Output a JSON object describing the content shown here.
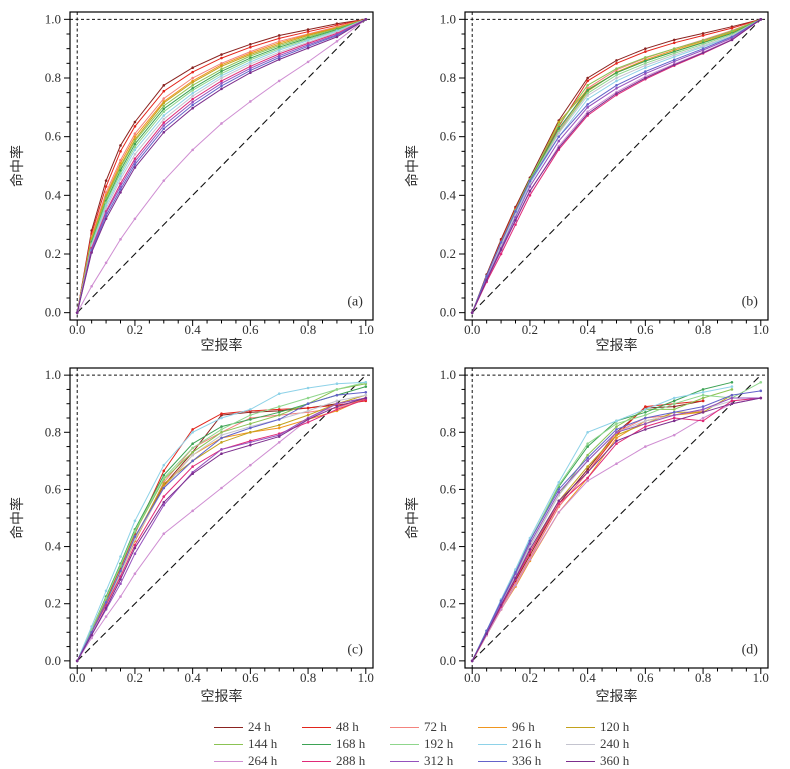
{
  "figure": {
    "panel_tags": [
      "(a)",
      "(b)",
      "(c)",
      "(d)"
    ],
    "axis_color": "#000000",
    "text_color": "#303030"
  },
  "legend": {
    "items": [
      {
        "label": "24 h",
        "color": "#8b2320"
      },
      {
        "label": "48 h",
        "color": "#e2251c"
      },
      {
        "label": "72 h",
        "color": "#f4837d"
      },
      {
        "label": "96 h",
        "color": "#f0961f"
      },
      {
        "label": "120 h",
        "color": "#c3a21c"
      },
      {
        "label": "144 h",
        "color": "#8bc353"
      },
      {
        "label": "168 h",
        "color": "#3da355"
      },
      {
        "label": "192 h",
        "color": "#8fd68c"
      },
      {
        "label": "216 h",
        "color": "#8ed2e8"
      },
      {
        "label": "240 h",
        "color": "#c4c4cf"
      },
      {
        "label": "264 h",
        "color": "#cf8ed2"
      },
      {
        "label": "288 h",
        "color": "#e02a78"
      },
      {
        "label": "312 h",
        "color": "#9551bd"
      },
      {
        "label": "336 h",
        "color": "#6463ca"
      },
      {
        "label": "360 h",
        "color": "#7c2e8d"
      }
    ]
  },
  "chart_data": {
    "type": "line",
    "xlabel": "空报率",
    "ylabel": "命中率",
    "xlim": [
      0,
      1
    ],
    "ylim": [
      0,
      1
    ],
    "ticks": [
      "0.0",
      "0.2",
      "0.4",
      "0.6",
      "0.8",
      "1.0"
    ],
    "tick_values": [
      0,
      0.2,
      0.4,
      0.6,
      0.8,
      1.0
    ],
    "minor_tick_step": 0.05,
    "grid": false,
    "diagonal_reference": {
      "from": [
        0,
        0
      ],
      "to": [
        1,
        1
      ],
      "style": "dashed",
      "color": "#111111"
    },
    "reference_lines": [
      {
        "axis": "x",
        "value": 0,
        "style": "dashed"
      },
      {
        "axis": "y",
        "value": 1,
        "style": "dashed"
      }
    ],
    "legend_position": "bottom",
    "x": [
      0,
      0.05,
      0.1,
      0.15,
      0.2,
      0.3,
      0.4,
      0.5,
      0.6,
      0.7,
      0.8,
      0.9,
      1.0
    ],
    "panels": [
      {
        "tag": "(a)",
        "y_series": [
          [
            0,
            0.28,
            0.45,
            0.57,
            0.65,
            0.775,
            0.835,
            0.88,
            0.915,
            0.945,
            0.965,
            0.985,
            1
          ],
          [
            0,
            0.27,
            0.43,
            0.55,
            0.635,
            0.755,
            0.82,
            0.868,
            0.905,
            0.935,
            0.958,
            0.98,
            1
          ],
          [
            0,
            0.26,
            0.41,
            0.52,
            0.61,
            0.73,
            0.8,
            0.85,
            0.89,
            0.925,
            0.95,
            0.975,
            1
          ],
          [
            0,
            0.255,
            0.4,
            0.51,
            0.6,
            0.72,
            0.79,
            0.845,
            0.885,
            0.92,
            0.948,
            0.972,
            1
          ],
          [
            0,
            0.25,
            0.395,
            0.5,
            0.59,
            0.715,
            0.785,
            0.84,
            0.88,
            0.915,
            0.945,
            0.97,
            1
          ],
          [
            0,
            0.245,
            0.39,
            0.495,
            0.585,
            0.705,
            0.775,
            0.83,
            0.875,
            0.91,
            0.94,
            0.968,
            1
          ],
          [
            0,
            0.24,
            0.38,
            0.485,
            0.575,
            0.695,
            0.765,
            0.823,
            0.868,
            0.905,
            0.936,
            0.965,
            1
          ],
          [
            0,
            0.235,
            0.375,
            0.475,
            0.565,
            0.685,
            0.758,
            0.815,
            0.862,
            0.9,
            0.932,
            0.962,
            1
          ],
          [
            0,
            0.23,
            0.365,
            0.465,
            0.555,
            0.672,
            0.748,
            0.808,
            0.855,
            0.895,
            0.928,
            0.96,
            1
          ],
          [
            0,
            0.225,
            0.355,
            0.455,
            0.54,
            0.66,
            0.738,
            0.8,
            0.848,
            0.888,
            0.922,
            0.956,
            1
          ],
          [
            0,
            0.09,
            0.17,
            0.25,
            0.32,
            0.45,
            0.555,
            0.645,
            0.72,
            0.79,
            0.855,
            0.925,
            1
          ],
          [
            0,
            0.22,
            0.345,
            0.44,
            0.525,
            0.648,
            0.728,
            0.79,
            0.84,
            0.882,
            0.918,
            0.952,
            1
          ],
          [
            0,
            0.215,
            0.34,
            0.43,
            0.515,
            0.638,
            0.718,
            0.782,
            0.833,
            0.876,
            0.913,
            0.948,
            1
          ],
          [
            0,
            0.21,
            0.33,
            0.42,
            0.505,
            0.627,
            0.708,
            0.773,
            0.826,
            0.87,
            0.908,
            0.945,
            1
          ],
          [
            0,
            0.205,
            0.32,
            0.41,
            0.495,
            0.615,
            0.697,
            0.763,
            0.818,
            0.863,
            0.902,
            0.94,
            1
          ]
        ]
      },
      {
        "tag": "(b)",
        "y_series": [
          [
            0,
            0.13,
            0.25,
            0.36,
            0.46,
            0.655,
            0.8,
            0.86,
            0.9,
            0.93,
            0.952,
            0.975,
            1
          ],
          [
            0,
            0.125,
            0.245,
            0.355,
            0.45,
            0.635,
            0.79,
            0.85,
            0.89,
            0.92,
            0.945,
            0.97,
            1
          ],
          [
            0,
            0.12,
            0.24,
            0.35,
            0.445,
            0.62,
            0.765,
            0.828,
            0.868,
            0.9,
            0.93,
            0.962,
            1
          ],
          [
            0,
            0.12,
            0.235,
            0.345,
            0.44,
            0.615,
            0.755,
            0.82,
            0.862,
            0.895,
            0.926,
            0.958,
            1
          ],
          [
            0,
            0.12,
            0.235,
            0.345,
            0.45,
            0.65,
            0.76,
            0.818,
            0.858,
            0.89,
            0.922,
            0.955,
            1
          ],
          [
            0,
            0.125,
            0.24,
            0.35,
            0.455,
            0.64,
            0.775,
            0.832,
            0.87,
            0.9,
            0.928,
            0.96,
            1
          ],
          [
            0,
            0.12,
            0.235,
            0.345,
            0.45,
            0.628,
            0.758,
            0.818,
            0.858,
            0.89,
            0.92,
            0.952,
            1
          ],
          [
            0,
            0.12,
            0.23,
            0.34,
            0.448,
            0.618,
            0.748,
            0.81,
            0.85,
            0.884,
            0.915,
            0.948,
            1
          ],
          [
            0,
            0.115,
            0.225,
            0.33,
            0.44,
            0.6,
            0.728,
            0.79,
            0.835,
            0.872,
            0.906,
            0.942,
            1
          ],
          [
            0,
            0.12,
            0.23,
            0.338,
            0.445,
            0.612,
            0.74,
            0.8,
            0.843,
            0.878,
            0.91,
            0.944,
            1
          ],
          [
            0,
            0.11,
            0.21,
            0.312,
            0.412,
            0.568,
            0.685,
            0.752,
            0.805,
            0.848,
            0.888,
            0.932,
            1
          ],
          [
            0,
            0.105,
            0.2,
            0.3,
            0.4,
            0.556,
            0.672,
            0.742,
            0.796,
            0.842,
            0.884,
            0.93,
            1
          ],
          [
            0,
            0.115,
            0.22,
            0.325,
            0.43,
            0.585,
            0.7,
            0.765,
            0.815,
            0.856,
            0.895,
            0.936,
            1
          ],
          [
            0,
            0.125,
            0.24,
            0.345,
            0.448,
            0.6,
            0.71,
            0.775,
            0.822,
            0.862,
            0.9,
            0.94,
            1
          ],
          [
            0,
            0.11,
            0.215,
            0.315,
            0.415,
            0.562,
            0.678,
            0.747,
            0.8,
            0.845,
            0.886,
            0.93,
            1
          ]
        ]
      },
      {
        "tag": "(c)",
        "y_series": [
          [
            0,
            0.1,
            0.21,
            0.31,
            0.42,
            0.615,
            0.73,
            0.86,
            0.87,
            0.875,
            0.885,
            0.9,
            0.92
          ],
          [
            0,
            0.105,
            0.215,
            0.325,
            0.445,
            0.665,
            0.81,
            0.865,
            0.875,
            0.88,
            0.885,
            0.895,
            0.91
          ],
          [
            0,
            0.1,
            0.205,
            0.31,
            0.425,
            0.625,
            0.745,
            0.8,
            0.85,
            0.86,
            0.87,
            0.885,
            0.92
          ],
          [
            0,
            0.1,
            0.2,
            0.305,
            0.42,
            0.61,
            0.72,
            0.78,
            0.8,
            0.815,
            0.845,
            0.875,
            0.92
          ],
          [
            0,
            0.1,
            0.21,
            0.31,
            0.43,
            0.62,
            0.7,
            0.765,
            0.8,
            0.825,
            0.86,
            0.9,
            0.93
          ],
          [
            0,
            0.11,
            0.22,
            0.33,
            0.45,
            0.635,
            0.73,
            0.8,
            0.83,
            0.86,
            0.9,
            0.95,
            0.97
          ],
          [
            0,
            0.11,
            0.225,
            0.34,
            0.46,
            0.65,
            0.76,
            0.82,
            0.845,
            0.87,
            0.9,
            0.93,
            0.96
          ],
          [
            0,
            0.11,
            0.22,
            0.335,
            0.455,
            0.64,
            0.745,
            0.81,
            0.86,
            0.89,
            0.92,
            0.95,
            0.975
          ],
          [
            0,
            0.12,
            0.245,
            0.365,
            0.49,
            0.685,
            0.8,
            0.85,
            0.88,
            0.935,
            0.955,
            0.97,
            0.975
          ],
          [
            0,
            0.1,
            0.205,
            0.305,
            0.425,
            0.605,
            0.72,
            0.79,
            0.82,
            0.845,
            0.875,
            0.91,
            0.93
          ],
          [
            0,
            0.08,
            0.155,
            0.225,
            0.305,
            0.445,
            0.525,
            0.605,
            0.685,
            0.765,
            0.845,
            0.9,
            0.92
          ],
          [
            0,
            0.1,
            0.195,
            0.295,
            0.405,
            0.575,
            0.68,
            0.74,
            0.77,
            0.795,
            0.835,
            0.88,
            0.915
          ],
          [
            0,
            0.09,
            0.18,
            0.27,
            0.375,
            0.545,
            0.66,
            0.74,
            0.765,
            0.79,
            0.85,
            0.9,
            0.92
          ],
          [
            0,
            0.1,
            0.205,
            0.315,
            0.435,
            0.605,
            0.7,
            0.78,
            0.815,
            0.845,
            0.9,
            0.93,
            0.94
          ],
          [
            0,
            0.09,
            0.185,
            0.285,
            0.395,
            0.555,
            0.655,
            0.725,
            0.755,
            0.785,
            0.845,
            0.89,
            0.92
          ]
        ]
      },
      {
        "tag": "(d)",
        "y_series": [
          [
            0,
            0.09,
            0.19,
            0.28,
            0.37,
            0.55,
            0.67,
            0.8,
            0.885,
            0.89,
            0.91,
            null,
            null
          ],
          [
            0,
            0.09,
            0.18,
            0.27,
            0.36,
            0.54,
            0.66,
            0.79,
            0.89,
            0.9,
            0.91,
            null,
            null
          ],
          [
            0,
            0.09,
            0.18,
            0.27,
            0.36,
            0.54,
            0.66,
            0.8,
            0.85,
            0.86,
            0.875,
            null,
            null
          ],
          [
            0,
            0.09,
            0.18,
            0.26,
            0.35,
            0.52,
            0.64,
            0.78,
            0.84,
            0.86,
            0.87,
            null,
            null
          ],
          [
            0,
            0.095,
            0.19,
            0.285,
            0.38,
            0.56,
            0.68,
            0.79,
            0.83,
            0.87,
            0.87,
            0.93,
            null
          ],
          [
            0,
            0.1,
            0.2,
            0.3,
            0.4,
            0.58,
            0.72,
            0.82,
            0.88,
            0.88,
            0.92,
            0.95,
            null
          ],
          [
            0,
            0.105,
            0.21,
            0.315,
            0.42,
            0.61,
            0.75,
            0.84,
            0.87,
            0.91,
            0.95,
            0.975,
            null
          ],
          [
            0,
            0.105,
            0.21,
            0.315,
            0.42,
            0.615,
            0.76,
            0.83,
            0.86,
            0.9,
            0.93,
            0.92,
            0.975
          ],
          [
            0,
            0.105,
            0.215,
            0.32,
            0.43,
            0.625,
            0.8,
            0.84,
            0.88,
            0.92,
            0.94,
            0.96,
            null
          ],
          [
            0,
            0.1,
            0.2,
            0.3,
            0.4,
            0.58,
            0.7,
            0.8,
            0.84,
            0.86,
            0.88,
            0.91,
            0.92
          ],
          [
            0,
            0.09,
            0.18,
            0.265,
            0.355,
            0.52,
            0.63,
            0.69,
            0.75,
            0.79,
            0.85,
            0.9,
            0.92
          ],
          [
            0,
            0.095,
            0.19,
            0.285,
            0.38,
            0.55,
            0.64,
            0.76,
            0.82,
            0.85,
            0.84,
            0.91,
            0.92
          ],
          [
            0,
            0.1,
            0.205,
            0.305,
            0.41,
            0.59,
            0.7,
            0.8,
            0.83,
            0.86,
            0.88,
            0.92,
            0.92
          ],
          [
            0,
            0.105,
            0.21,
            0.31,
            0.42,
            0.6,
            0.71,
            0.81,
            0.85,
            0.87,
            0.89,
            0.93,
            0.945
          ],
          [
            0,
            0.095,
            0.195,
            0.29,
            0.39,
            0.56,
            0.66,
            0.77,
            0.81,
            0.84,
            0.87,
            0.9,
            0.92
          ]
        ]
      }
    ]
  }
}
